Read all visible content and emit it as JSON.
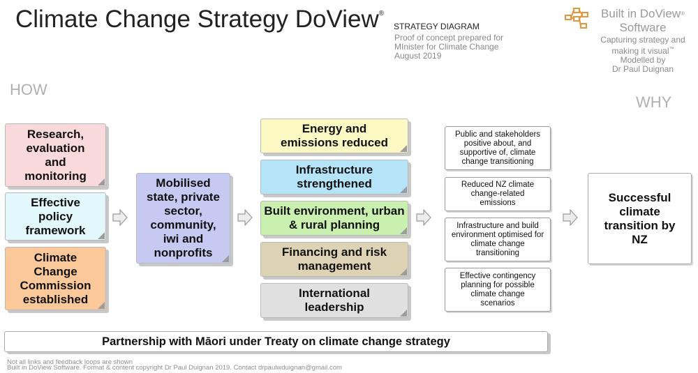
{
  "header": {
    "title": "Climate Change Strategy DoView",
    "title_reg": "®",
    "subtitle": "STRATEGY DIAGRAM",
    "proof_line1": "Proof of concept prepared for",
    "proof_line2": "MInister for Climate Change",
    "proof_line3": "August 2019"
  },
  "brand": {
    "line1": "Built in DoView",
    "reg": "®",
    "line2": "Software",
    "tag_line1": "Capturing strategy and",
    "tag_line2": "making it visual",
    "tag_tm": "™",
    "modelled_line1": "Modelled by",
    "modelled_line2": "Dr Paul Duignan",
    "logo_icon": "doview-logo-icon",
    "logo_color": "#e8943a"
  },
  "labels": {
    "how": "HOW",
    "why": "WHY"
  },
  "column1": [
    {
      "text": "Research, evaluation and monitoring",
      "color": "#f9d9dc"
    },
    {
      "text": "Effective policy framework",
      "color": "#e3f8fc"
    },
    {
      "text": "Climate Change Commission established",
      "color": "#fbc89a"
    }
  ],
  "column2": {
    "text": "Mobilised state, private sector, community, iwi and nonprofits",
    "color": "#c6c9f2"
  },
  "column3": [
    {
      "text": "Energy and emissions reduced",
      "color": "#fbf8c4"
    },
    {
      "text": "Infrastructure strengthened",
      "color": "#b5e4f9"
    },
    {
      "text": "Built environment, urban & rural planning",
      "color": "#c9f0ae"
    },
    {
      "text": "Financing and risk management",
      "color": "#ddd3b4"
    },
    {
      "text": "International leadership",
      "color": "#e0e0e0"
    }
  ],
  "column4": [
    {
      "text": "Public and stakeholders positive about, and supportive of, climate change transitioning"
    },
    {
      "text": "Reduced NZ climate change-related emissions"
    },
    {
      "text": "Infrastructure and build environment optimised for climate change transitioning"
    },
    {
      "text": "Effective contingency planning for possible climate change scenarios"
    }
  ],
  "outcome": {
    "text": "Successful climate transition by NZ"
  },
  "partnership": {
    "text": "Partnership with Māori under Treaty on climate change strategy"
  },
  "footer": {
    "note": "Not all links and feedback loops are shown",
    "copyright": "Built in DoView Software. Format & content copyright Dr Paul Duignan 2019. Contact drpaulwduignan@gmail.com"
  }
}
